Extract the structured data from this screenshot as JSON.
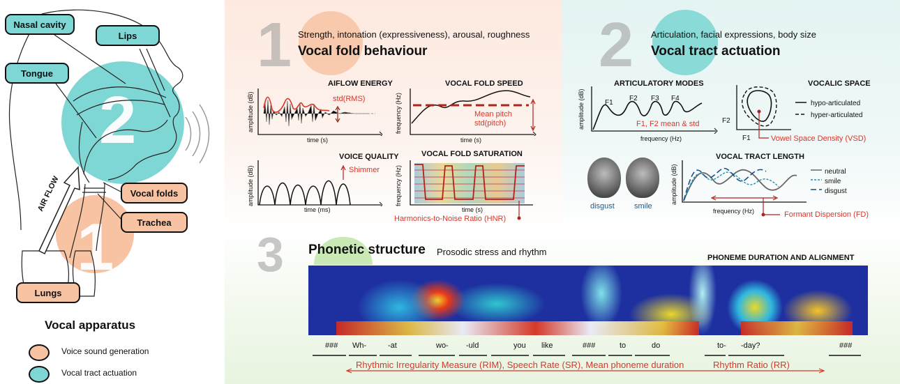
{
  "apparatus": {
    "labels": {
      "nasal_cavity": "Nasal cavity",
      "lips": "Lips",
      "tongue": "Tongue",
      "vocal_folds": "Vocal folds",
      "trachea": "Trachea",
      "lungs": "Lungs",
      "air_flow": "AIR FLOW"
    },
    "title": "Vocal apparatus",
    "legend": [
      {
        "label": "Voice sound generation",
        "color": "#f7c3a3"
      },
      {
        "label": "Vocal tract actuation",
        "color": "#7fd7d5"
      }
    ],
    "num1": "1",
    "num2": "2"
  },
  "section1": {
    "number": "1",
    "subtitle": "Strength, intonation (expressiveness), arousal, roughness",
    "title": "Vocal fold behaviour",
    "panels": {
      "airflow": {
        "title": "AIFLOW ENERGY",
        "ylabel": "amplitude (dB)",
        "xlabel": "time (s)",
        "annot": "std(RMS)"
      },
      "speed": {
        "title": "VOCAL FOLD SPEED",
        "ylabel": "frequency (Hz)",
        "xlabel": "time (s)",
        "annot1": "Mean pitch",
        "annot2": "std(pitch)"
      },
      "quality": {
        "title": "VOICE QUALITY",
        "ylabel": "amplitude (dB)",
        "xlabel": "time (ms)",
        "annot": "Shimmer"
      },
      "saturation": {
        "title": "VOCAL FOLD SATURATION",
        "ylabel": "frequency (Hz)",
        "xlabel": "time (s)",
        "annot": "Harmonics-to-Noise Ratio (HNR)"
      }
    }
  },
  "section2": {
    "number": "2",
    "subtitle": "Articulation, facial expressions, body size",
    "title": "Vocal tract actuation",
    "panels": {
      "modes": {
        "title": "ARTICULATORY MODES",
        "ylabel": "amplitude (dB)",
        "xlabel": "frequency (Hz)",
        "formants": [
          "F1",
          "F2",
          "F3",
          "F4"
        ],
        "annot": "F1, F2 mean & std"
      },
      "vocalic": {
        "title": "VOCALIC SPACE",
        "ylabel": "F2",
        "xlabel": "F1",
        "legend": [
          "hypo-articulated",
          "hyper-articulated"
        ],
        "annot": "Vowel Space Density (VSD)"
      },
      "length": {
        "title": "VOCAL TRACT LENGTH",
        "ylabel": "amplitude (dB)",
        "xlabel": "frequency (Hz)",
        "legend": [
          "neutral",
          "smile",
          "disgust"
        ],
        "annot": "Formant Dispersion (FD)",
        "faces": [
          "disgust",
          "smile"
        ]
      }
    }
  },
  "section3": {
    "number": "3",
    "title": "Phonetic structure",
    "subtitle": "Prosodic stress and rhythm",
    "right_title": "PHONEME DURATION AND ALIGNMENT",
    "phonemes": [
      "###",
      "Wh-",
      "-at",
      "wo-",
      "-uld",
      "you",
      "like",
      "###",
      "to",
      "do",
      "to-",
      "-day?",
      "###"
    ],
    "measure1": "Rhythmic Irregularity Measure (RIM), Speech Rate (SR), Mean phoneme duration",
    "measure2": "Rhythm Ratio (RR)"
  }
}
